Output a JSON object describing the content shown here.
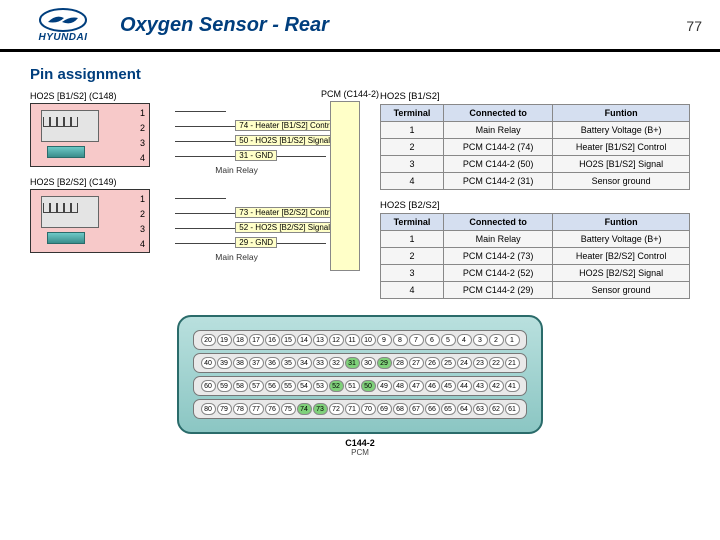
{
  "header": {
    "brand": "HYUNDAI",
    "title": "Oxygen Sensor - Rear",
    "page": "77"
  },
  "subheading": "Pin assignment",
  "connectors": [
    {
      "label": "HO2S [B1/S2] (C148)",
      "pins": [
        "1",
        "2",
        "3",
        "4"
      ],
      "wires": [
        {
          "label": "74 - Heater [B1/S2] Control"
        },
        {
          "label": "50 - HO2S [B1/S2] Signal"
        },
        {
          "label": "31 - GND"
        }
      ],
      "relay": "Main Relay"
    },
    {
      "label": "HO2S [B2/S2] (C149)",
      "pins": [
        "1",
        "2",
        "3",
        "4"
      ],
      "wires": [
        {
          "label": "73 - Heater [B2/S2] Control"
        },
        {
          "label": "52 - HO2S [B2/S2] Signal"
        },
        {
          "label": "29 - GND"
        }
      ],
      "relay": "Main Relay"
    }
  ],
  "pcm_label": "PCM (C144-2)",
  "tables": [
    {
      "title": "HO2S [B1/S2]",
      "headers": [
        "Terminal",
        "Connected to",
        "Funtion"
      ],
      "rows": [
        [
          "1",
          "Main Relay",
          "Battery Voltage (B+)"
        ],
        [
          "2",
          "PCM C144-2 (74)",
          "Heater [B1/S2] Control"
        ],
        [
          "3",
          "PCM C144-2 (50)",
          "HO2S [B1/S2] Signal"
        ],
        [
          "4",
          "PCM C144-2 (31)",
          "Sensor ground"
        ]
      ]
    },
    {
      "title": "HO2S [B2/S2]",
      "headers": [
        "Terminal",
        "Connected to",
        "Funtion"
      ],
      "rows": [
        [
          "1",
          "Main Relay",
          "Battery Voltage (B+)"
        ],
        [
          "2",
          "PCM C144-2 (73)",
          "Heater [B2/S2] Control"
        ],
        [
          "3",
          "PCM C144-2 (52)",
          "HO2S [B2/S2] Signal"
        ],
        [
          "4",
          "PCM C144-2 (29)",
          "Sensor ground"
        ]
      ]
    }
  ],
  "big_connector": {
    "label": "C144-2",
    "sublabel": "PCM",
    "rows": [
      {
        "start": 1,
        "end": 20,
        "highlights": []
      },
      {
        "start": 21,
        "end": 40,
        "highlights": [
          29,
          31
        ]
      },
      {
        "start": 41,
        "end": 60,
        "highlights": [
          50,
          52
        ]
      },
      {
        "start": 61,
        "end": 80,
        "highlights": [
          73,
          74
        ]
      }
    ],
    "colors": {
      "body": "#8bc6c3",
      "cell_bg": "#ffffff",
      "highlight": "#7fd17a"
    }
  },
  "colors": {
    "brand": "#003e7d",
    "conn_bg": "#f7c9c9",
    "pcm_bg": "#ffffc8",
    "table_header": "#d5dff0",
    "wire": "#444444"
  }
}
